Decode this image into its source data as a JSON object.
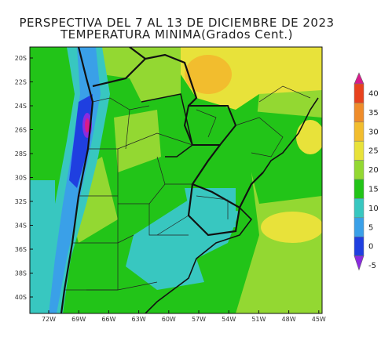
{
  "title_line1": "PERSPECTIVA DEL 7 AL 13 DE DICIEMBRE DE 2023",
  "title_line2": "TEMPERATURA MINIMA(Grados Cent.)",
  "lat_labels": [
    "20S",
    "22S",
    "24S",
    "26S",
    "28S",
    "30S",
    "32S",
    "34S",
    "36S",
    "38S",
    "40S"
  ],
  "lon_labels": [
    "72W",
    "69W",
    "66W",
    "63W",
    "60W",
    "57W",
    "54W",
    "51W",
    "48W",
    "45W"
  ],
  "colorbar": {
    "labels": [
      "40",
      "35",
      "30",
      "25",
      "20",
      "15",
      "10",
      "5",
      "0",
      "-5"
    ],
    "colors": [
      "#d81b8c",
      "#e8421e",
      "#ef8c2a",
      "#f2bd2e",
      "#e8e23a",
      "#93d832",
      "#22c418",
      "#38c7c0",
      "#3aa0e8",
      "#1f3fe0",
      "#8a2be0"
    ]
  }
}
